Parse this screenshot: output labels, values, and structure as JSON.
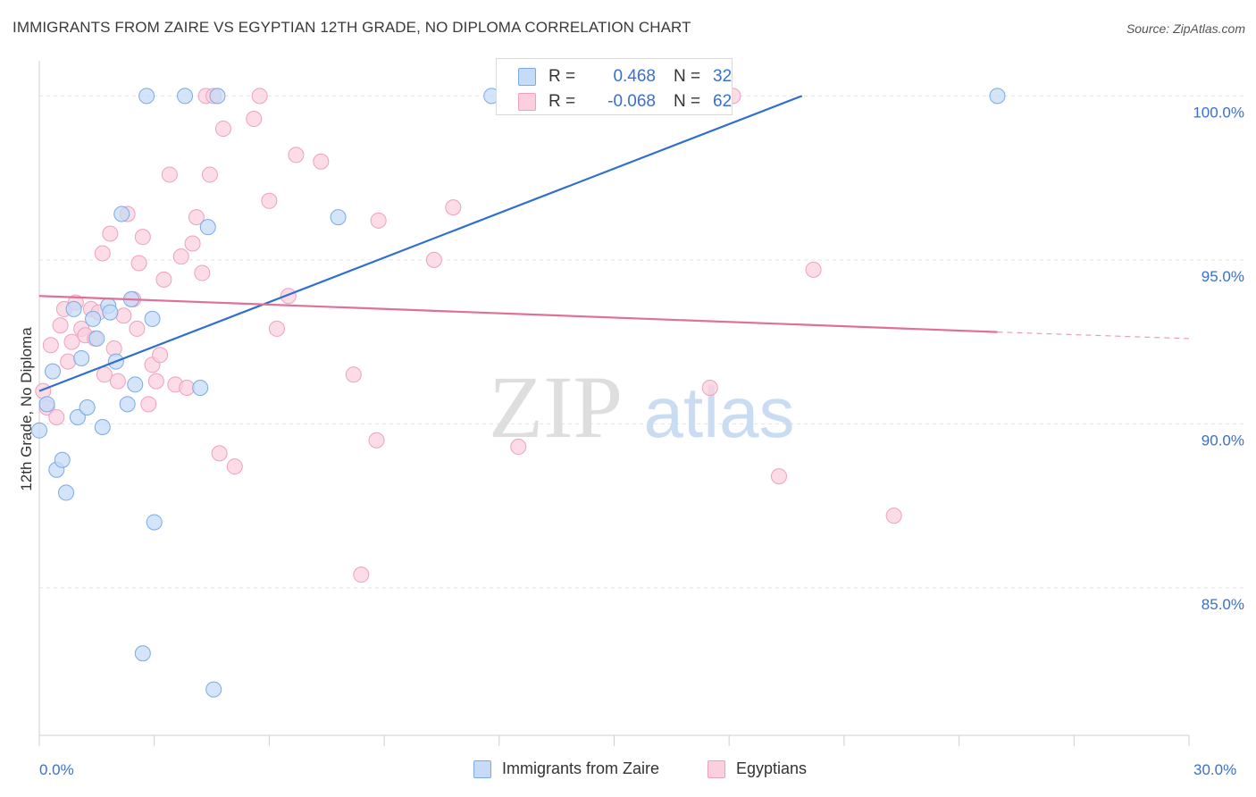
{
  "title": "IMMIGRANTS FROM ZAIRE VS EGYPTIAN 12TH GRADE, NO DIPLOMA CORRELATION CHART",
  "source": "Source: ZipAtlas.com",
  "watermark": {
    "zip": "ZIP",
    "atlas": "atlas"
  },
  "legend": {
    "rows": [
      {
        "r_label": "R =",
        "r_value": "0.468",
        "n_label": "N =",
        "n_value": "32"
      },
      {
        "r_label": "R =",
        "r_value": "-0.068",
        "n_label": "N =",
        "n_value": "62"
      }
    ]
  },
  "chart_data": {
    "type": "scatter",
    "title": "IMMIGRANTS FROM ZAIRE VS EGYPTIAN 12TH GRADE, NO DIPLOMA CORRELATION CHART",
    "xlabel": "",
    "ylabel": "12th Grade, No Diploma",
    "xlim": [
      0,
      30
    ],
    "ylim": [
      80.5,
      100.8
    ],
    "x_tick_labels": [
      "0.0%",
      "30.0%"
    ],
    "y_ticks": [
      85,
      90,
      95,
      100
    ],
    "y_tick_labels": [
      "85.0%",
      "90.0%",
      "95.0%",
      "100.0%"
    ],
    "grid": true,
    "legend_position": "bottom-center",
    "colors": {
      "zaire": "#7aaae6",
      "zaire_line": "#2f6fcf",
      "egypt": "#f0a0bb",
      "egypt_line": "#e0709a"
    },
    "series": [
      {
        "name": "Immigrants from Zaire",
        "r": 0.468,
        "n": 32,
        "trend": {
          "x0": 0,
          "y0": 91.0,
          "x1": 19.9,
          "y1": 100.0
        },
        "points": [
          [
            0.0,
            89.8
          ],
          [
            0.2,
            90.6
          ],
          [
            0.35,
            91.6
          ],
          [
            0.45,
            88.6
          ],
          [
            0.6,
            88.9
          ],
          [
            0.7,
            87.9
          ],
          [
            0.9,
            93.5
          ],
          [
            1.0,
            90.2
          ],
          [
            1.1,
            92.0
          ],
          [
            1.25,
            90.5
          ],
          [
            1.4,
            93.2
          ],
          [
            1.5,
            92.6
          ],
          [
            1.65,
            89.9
          ],
          [
            1.8,
            93.6
          ],
          [
            1.85,
            93.4
          ],
          [
            2.0,
            91.9
          ],
          [
            2.15,
            96.4
          ],
          [
            2.3,
            90.6
          ],
          [
            2.4,
            93.8
          ],
          [
            2.5,
            91.2
          ],
          [
            2.7,
            83.0
          ],
          [
            2.8,
            100.0
          ],
          [
            2.95,
            93.2
          ],
          [
            3.0,
            87.0
          ],
          [
            3.8,
            100.0
          ],
          [
            4.2,
            91.1
          ],
          [
            4.4,
            96.0
          ],
          [
            4.55,
            81.9
          ],
          [
            4.65,
            100.0
          ],
          [
            7.8,
            96.3
          ],
          [
            11.8,
            100.0
          ],
          [
            25.0,
            100.0
          ]
        ]
      },
      {
        "name": "Egyptians",
        "r": -0.068,
        "n": 62,
        "trend": {
          "x0": 0,
          "y0": 93.9,
          "x1": 25.0,
          "y1": 92.8,
          "dash_x1": 30.0,
          "dash_y1": 92.6
        },
        "points": [
          [
            0.1,
            91.0
          ],
          [
            0.2,
            90.5
          ],
          [
            0.3,
            92.4
          ],
          [
            0.45,
            90.2
          ],
          [
            0.55,
            93.0
          ],
          [
            0.65,
            93.5
          ],
          [
            0.75,
            91.9
          ],
          [
            0.85,
            92.5
          ],
          [
            0.95,
            93.7
          ],
          [
            1.1,
            92.9
          ],
          [
            1.2,
            92.7
          ],
          [
            1.35,
            93.5
          ],
          [
            1.45,
            92.6
          ],
          [
            1.55,
            93.4
          ],
          [
            1.65,
            95.2
          ],
          [
            1.7,
            91.5
          ],
          [
            1.85,
            95.8
          ],
          [
            1.95,
            92.3
          ],
          [
            2.05,
            91.3
          ],
          [
            2.2,
            93.3
          ],
          [
            2.3,
            96.4
          ],
          [
            2.45,
            93.8
          ],
          [
            2.55,
            92.9
          ],
          [
            2.6,
            94.9
          ],
          [
            2.7,
            95.7
          ],
          [
            2.85,
            90.6
          ],
          [
            2.95,
            91.8
          ],
          [
            3.05,
            91.3
          ],
          [
            3.15,
            92.1
          ],
          [
            3.25,
            94.4
          ],
          [
            3.4,
            97.6
          ],
          [
            3.55,
            91.2
          ],
          [
            3.7,
            95.1
          ],
          [
            3.85,
            91.1
          ],
          [
            4.0,
            95.5
          ],
          [
            4.1,
            96.3
          ],
          [
            4.25,
            94.6
          ],
          [
            4.35,
            100.0
          ],
          [
            4.45,
            97.6
          ],
          [
            4.55,
            100.0
          ],
          [
            4.7,
            89.1
          ],
          [
            4.8,
            99.0
          ],
          [
            5.1,
            88.7
          ],
          [
            5.6,
            99.3
          ],
          [
            5.75,
            100.0
          ],
          [
            6.0,
            96.8
          ],
          [
            6.2,
            92.9
          ],
          [
            6.5,
            93.9
          ],
          [
            6.7,
            98.2
          ],
          [
            7.35,
            98.0
          ],
          [
            8.2,
            91.5
          ],
          [
            8.4,
            85.4
          ],
          [
            8.8,
            89.5
          ],
          [
            8.85,
            96.2
          ],
          [
            10.3,
            95.0
          ],
          [
            10.8,
            96.6
          ],
          [
            12.5,
            89.3
          ],
          [
            17.5,
            91.1
          ],
          [
            18.1,
            100.0
          ],
          [
            19.3,
            88.4
          ],
          [
            20.2,
            94.7
          ],
          [
            22.3,
            87.2
          ]
        ]
      }
    ]
  }
}
